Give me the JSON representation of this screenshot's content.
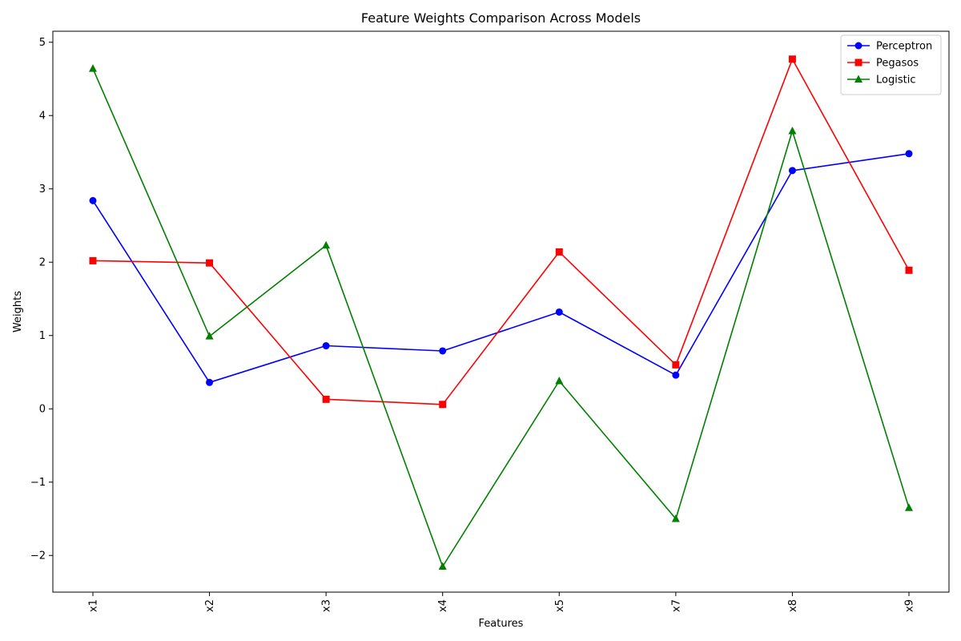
{
  "chart_data": {
    "type": "line",
    "title": "Feature Weights Comparison Across Models",
    "xlabel": "Features",
    "ylabel": "Weights",
    "categories": [
      "x1",
      "x2",
      "x3",
      "x4",
      "x5",
      "x7",
      "x8",
      "x9"
    ],
    "ylim": [
      -2.5,
      5.15
    ],
    "yticks": [
      -2,
      -1,
      0,
      1,
      2,
      3,
      4,
      5
    ],
    "ytick_labels": [
      "−2",
      "−1",
      "0",
      "1",
      "2",
      "3",
      "4",
      "5"
    ],
    "grid": false,
    "legend_position": "top-right",
    "series": [
      {
        "name": "Perceptron",
        "color": "#0000ff",
        "marker": "circle",
        "values": [
          2.84,
          0.36,
          0.86,
          0.79,
          1.32,
          0.46,
          3.25,
          3.48
        ]
      },
      {
        "name": "Pegasos",
        "color": "#ff0000",
        "marker": "square",
        "values": [
          2.02,
          1.99,
          0.13,
          0.06,
          2.14,
          0.6,
          4.77,
          1.89
        ]
      },
      {
        "name": "Logistic",
        "color": "#008000",
        "marker": "triangle",
        "values": [
          4.64,
          0.99,
          2.23,
          -2.15,
          0.38,
          -1.5,
          3.79,
          -1.35
        ]
      }
    ]
  }
}
